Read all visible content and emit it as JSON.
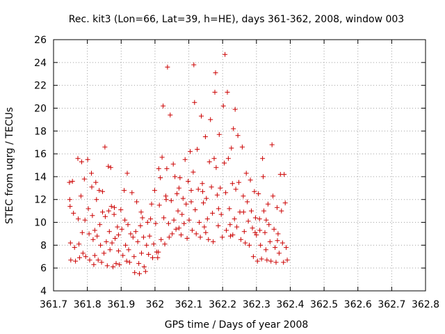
{
  "chart_data": {
    "type": "scatter",
    "title": "Rec. kit3 (Lon=66, Lat=39, h=HE), days 361-362, 2008, window 003",
    "xlabel": "GPS time / Days of year 2008",
    "ylabel": "STEC from uqrg / TECUs",
    "xlim": [
      361.7,
      362.8
    ],
    "ylim": [
      4,
      26
    ],
    "xticks": [
      "361.7",
      "361.8",
      "361.9",
      "362",
      "362.1",
      "362.2",
      "362.3",
      "362.4",
      "362.5",
      "362.6",
      "362.7",
      "362.8"
    ],
    "yticks": [
      "4",
      "6",
      "8",
      "10",
      "12",
      "14",
      "16",
      "18",
      "20",
      "22",
      "24",
      "26"
    ],
    "grid": true,
    "marker": "plus",
    "color": "#cc0000",
    "points": [
      [
        361.747,
        13.5
      ],
      [
        361.748,
        12.0
      ],
      [
        361.749,
        11.4
      ],
      [
        361.75,
        8.2
      ],
      [
        361.751,
        6.7
      ],
      [
        361.756,
        13.6
      ],
      [
        361.759,
        10.8
      ],
      [
        361.762,
        7.8
      ],
      [
        361.765,
        6.6
      ],
      [
        361.772,
        15.6
      ],
      [
        361.773,
        10.3
      ],
      [
        361.775,
        8.1
      ],
      [
        361.777,
        6.9
      ],
      [
        361.781,
        12.3
      ],
      [
        361.783,
        15.3
      ],
      [
        361.785,
        9.1
      ],
      [
        361.787,
        7.3
      ],
      [
        361.791,
        13.8
      ],
      [
        361.793,
        10.2
      ],
      [
        361.795,
        7.0
      ],
      [
        361.801,
        15.5
      ],
      [
        361.803,
        11.2
      ],
      [
        361.805,
        9.0
      ],
      [
        361.807,
        6.7
      ],
      [
        361.812,
        14.3
      ],
      [
        361.813,
        13.1
      ],
      [
        361.815,
        10.6
      ],
      [
        361.817,
        8.5
      ],
      [
        361.819,
        6.3
      ],
      [
        361.822,
        9.3
      ],
      [
        361.825,
        13.5
      ],
      [
        361.827,
        12.0
      ],
      [
        361.829,
        8.8
      ],
      [
        361.832,
        6.7
      ],
      [
        361.835,
        12.8
      ],
      [
        361.837,
        9.8
      ],
      [
        361.839,
        8.0
      ],
      [
        361.842,
        6.5
      ],
      [
        361.845,
        10.9
      ],
      [
        361.849,
        7.3
      ],
      [
        361.852,
        16.6
      ],
      [
        361.853,
        10.5
      ],
      [
        361.856,
        8.3
      ],
      [
        361.859,
        6.2
      ],
      [
        361.862,
        14.9
      ],
      [
        361.863,
        11.0
      ],
      [
        361.865,
        9.2
      ],
      [
        361.867,
        7.6
      ],
      [
        361.869,
        14.8
      ],
      [
        361.871,
        11.4
      ],
      [
        361.873,
        8.2
      ],
      [
        361.876,
        6.1
      ],
      [
        361.879,
        10.7
      ],
      [
        361.882,
        8.6
      ],
      [
        361.885,
        6.4
      ],
      [
        361.889,
        9.6
      ],
      [
        361.892,
        7.5
      ],
      [
        361.895,
        6.3
      ],
      [
        361.899,
        11.1
      ],
      [
        361.902,
        9.4
      ],
      [
        361.905,
        7.1
      ],
      [
        361.909,
        12.8
      ],
      [
        361.911,
        10.2
      ],
      [
        361.913,
        8.0
      ],
      [
        361.916,
        6.6
      ],
      [
        361.918,
        14.3
      ],
      [
        361.92,
        9.8
      ],
      [
        361.922,
        7.6
      ],
      [
        361.925,
        6.5
      ],
      [
        361.932,
        12.6
      ],
      [
        361.935,
        8.7
      ],
      [
        361.938,
        7.0
      ],
      [
        361.94,
        5.6
      ],
      [
        361.943,
        9.2
      ],
      [
        361.946,
        11.8
      ],
      [
        361.949,
        8.3
      ],
      [
        361.952,
        6.4
      ],
      [
        361.954,
        5.5
      ],
      [
        361.957,
        9.7
      ],
      [
        361.96,
        7.3
      ],
      [
        361.963,
        10.4
      ],
      [
        361.966,
        8.7
      ],
      [
        361.968,
        6.1
      ],
      [
        361.972,
        5.7
      ],
      [
        361.975,
        8.0
      ],
      [
        361.978,
        10.0
      ],
      [
        361.981,
        7.2
      ],
      [
        361.984,
        8.8
      ],
      [
        361.987,
        10.3
      ],
      [
        361.99,
        11.6
      ],
      [
        361.993,
        6.9
      ],
      [
        361.996,
        8.1
      ],
      [
        361.999,
        12.8
      ],
      [
        362.002,
        9.9
      ],
      [
        362.005,
        7.4
      ],
      [
        362.008,
        6.9
      ],
      [
        362.011,
        14.7
      ],
      [
        362.013,
        11.5
      ],
      [
        362.016,
        13.9
      ],
      [
        362.018,
        8.5
      ],
      [
        362.021,
        15.7
      ],
      [
        362.024,
        20.2
      ],
      [
        362.026,
        10.4
      ],
      [
        362.029,
        8.1
      ],
      [
        362.032,
        12.3
      ],
      [
        362.035,
        14.7
      ],
      [
        362.037,
        23.6
      ],
      [
        362.04,
        9.9
      ],
      [
        362.042,
        8.7
      ],
      [
        362.045,
        19.4
      ],
      [
        362.048,
        11.9
      ],
      [
        362.051,
        9.0
      ],
      [
        362.054,
        15.1
      ],
      [
        362.056,
        10.2
      ],
      [
        362.059,
        14.0
      ],
      [
        362.062,
        9.4
      ],
      [
        362.065,
        12.5
      ],
      [
        362.068,
        11.0
      ],
      [
        362.071,
        9.5
      ],
      [
        362.074,
        13.9
      ],
      [
        362.077,
        8.9
      ],
      [
        362.08,
        10.7
      ],
      [
        362.083,
        12.1
      ],
      [
        362.086,
        9.9
      ],
      [
        362.089,
        15.5
      ],
      [
        362.092,
        11.6
      ],
      [
        362.095,
        8.6
      ],
      [
        362.098,
        13.6
      ],
      [
        362.101,
        10.2
      ],
      [
        362.104,
        16.2
      ],
      [
        362.107,
        12.8
      ],
      [
        362.11,
        9.3
      ],
      [
        362.113,
        14.4
      ],
      [
        362.115,
        23.8
      ],
      [
        362.117,
        20.5
      ],
      [
        362.119,
        11.1
      ],
      [
        362.122,
        9.0
      ],
      [
        362.125,
        16.4
      ],
      [
        362.128,
        12.9
      ],
      [
        362.131,
        10.0
      ],
      [
        362.134,
        8.7
      ],
      [
        362.137,
        19.3
      ],
      [
        362.14,
        13.4
      ],
      [
        362.143,
        11.7
      ],
      [
        362.146,
        9.6
      ],
      [
        362.149,
        17.5
      ],
      [
        362.152,
        12.1
      ],
      [
        362.155,
        10.3
      ],
      [
        362.158,
        8.5
      ],
      [
        362.161,
        15.3
      ],
      [
        362.164,
        19.0
      ],
      [
        362.167,
        13.1
      ],
      [
        362.17,
        10.8
      ],
      [
        362.172,
        8.3
      ],
      [
        362.175,
        15.6
      ],
      [
        362.177,
        21.4
      ],
      [
        362.179,
        23.1
      ],
      [
        362.181,
        14.8
      ],
      [
        362.184,
        12.4
      ],
      [
        362.187,
        9.7
      ],
      [
        362.19,
        17.7
      ],
      [
        362.193,
        13.0
      ],
      [
        362.196,
        10.7
      ],
      [
        362.199,
        8.7
      ],
      [
        362.202,
        20.2
      ],
      [
        362.205,
        15.2
      ],
      [
        362.207,
        24.7
      ],
      [
        362.209,
        12.6
      ],
      [
        362.211,
        9.3
      ],
      [
        362.214,
        21.4
      ],
      [
        362.217,
        15.6
      ],
      [
        362.22,
        11.2
      ],
      [
        362.223,
        8.8
      ],
      [
        362.226,
        16.5
      ],
      [
        362.229,
        13.4
      ],
      [
        362.232,
        18.2
      ],
      [
        362.235,
        10.3
      ],
      [
        362.237,
        19.9
      ],
      [
        362.239,
        12.9
      ],
      [
        362.242,
        9.6
      ],
      [
        362.245,
        17.6
      ],
      [
        362.248,
        13.5
      ],
      [
        362.251,
        10.9
      ],
      [
        362.254,
        8.5
      ],
      [
        362.258,
        16.6
      ],
      [
        362.261,
        12.3
      ],
      [
        362.264,
        9.2
      ],
      [
        362.267,
        8.2
      ],
      [
        362.27,
        14.3
      ],
      [
        362.273,
        11.8
      ],
      [
        362.276,
        10.1
      ],
      [
        362.279,
        8.0
      ],
      [
        362.282,
        13.7
      ],
      [
        362.285,
        11.0
      ],
      [
        362.288,
        9.5
      ],
      [
        362.291,
        7.0
      ],
      [
        362.294,
        12.7
      ],
      [
        362.297,
        10.4
      ],
      [
        362.3,
        8.9
      ],
      [
        362.303,
        6.6
      ],
      [
        362.306,
        12.5
      ],
      [
        362.309,
        10.3
      ],
      [
        362.312,
        8.0
      ],
      [
        362.315,
        6.8
      ],
      [
        362.318,
        15.6
      ],
      [
        362.32,
        14.0
      ],
      [
        362.322,
        11.0
      ],
      [
        362.325,
        9.1
      ],
      [
        362.328,
        7.6
      ],
      [
        362.331,
        6.7
      ],
      [
        362.334,
        11.6
      ],
      [
        362.337,
        9.8
      ],
      [
        362.34,
        8.3
      ],
      [
        362.343,
        6.6
      ],
      [
        362.346,
        16.8
      ],
      [
        362.349,
        12.3
      ],
      [
        362.352,
        9.4
      ],
      [
        362.355,
        7.8
      ],
      [
        362.358,
        6.5
      ],
      [
        362.361,
        11.3
      ],
      [
        362.364,
        9.0
      ],
      [
        362.367,
        7.3
      ],
      [
        362.371,
        14.2
      ],
      [
        362.374,
        11.0
      ],
      [
        362.377,
        8.2
      ],
      [
        362.38,
        6.5
      ],
      [
        362.382,
        14.2
      ],
      [
        362.385,
        11.7
      ],
      [
        362.388,
        7.8
      ],
      [
        362.391,
        6.7
      ],
      [
        361.845,
        12.7
      ],
      [
        361.88,
        11.3
      ],
      [
        361.928,
        9.0
      ],
      [
        361.959,
        10.9
      ],
      [
        362.033,
        12.0
      ],
      [
        362.071,
        13.0
      ],
      [
        362.107,
        11.8
      ],
      [
        362.141,
        12.7
      ],
      [
        362.188,
        11.2
      ],
      [
        362.222,
        9.8
      ],
      [
        362.262,
        10.9
      ],
      [
        362.296,
        9.1
      ],
      [
        362.329,
        10.2
      ],
      [
        362.362,
        8.4
      ],
      [
        361.822,
        7.1
      ],
      [
        361.892,
        8.9
      ],
      [
        362.01,
        7.4
      ],
      [
        362.15,
        9.1
      ],
      [
        362.23,
        8.9
      ],
      [
        362.31,
        9.3
      ]
    ]
  }
}
